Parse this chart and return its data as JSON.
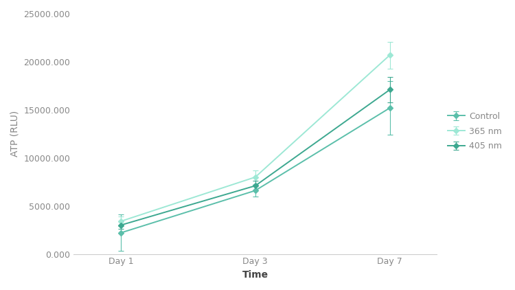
{
  "x_labels": [
    "Day 1",
    "Day 3",
    "Day 7"
  ],
  "x_positions": [
    0,
    1,
    2
  ],
  "series": [
    {
      "label": "Control",
      "color": "#5bbfaa",
      "marker": "D",
      "markersize": 4,
      "values": [
        2200000,
        6600000,
        15200000
      ],
      "errors": [
        1900000,
        600000,
        2800000
      ]
    },
    {
      "label": "365 nm",
      "color": "#9de8d5",
      "marker": "D",
      "markersize": 4,
      "values": [
        3400000,
        8000000,
        20700000
      ],
      "errors": [
        500000,
        700000,
        1400000
      ]
    },
    {
      "label": "405 nm",
      "color": "#3da890",
      "marker": "D",
      "markersize": 4,
      "values": [
        3000000,
        7100000,
        17100000
      ],
      "errors": [
        400000,
        500000,
        1300000
      ]
    }
  ],
  "ylabel": "ATP (RLU)",
  "xlabel": "Time",
  "ylim": [
    0,
    25000000
  ],
  "yticks": [
    0,
    5000000,
    10000000,
    15000000,
    20000000,
    25000000
  ],
  "linewidth": 1.4,
  "background_color": "#ffffff",
  "axis_color": "#cccccc",
  "tick_color": "#888888",
  "label_fontsize": 10,
  "tick_fontsize": 9
}
